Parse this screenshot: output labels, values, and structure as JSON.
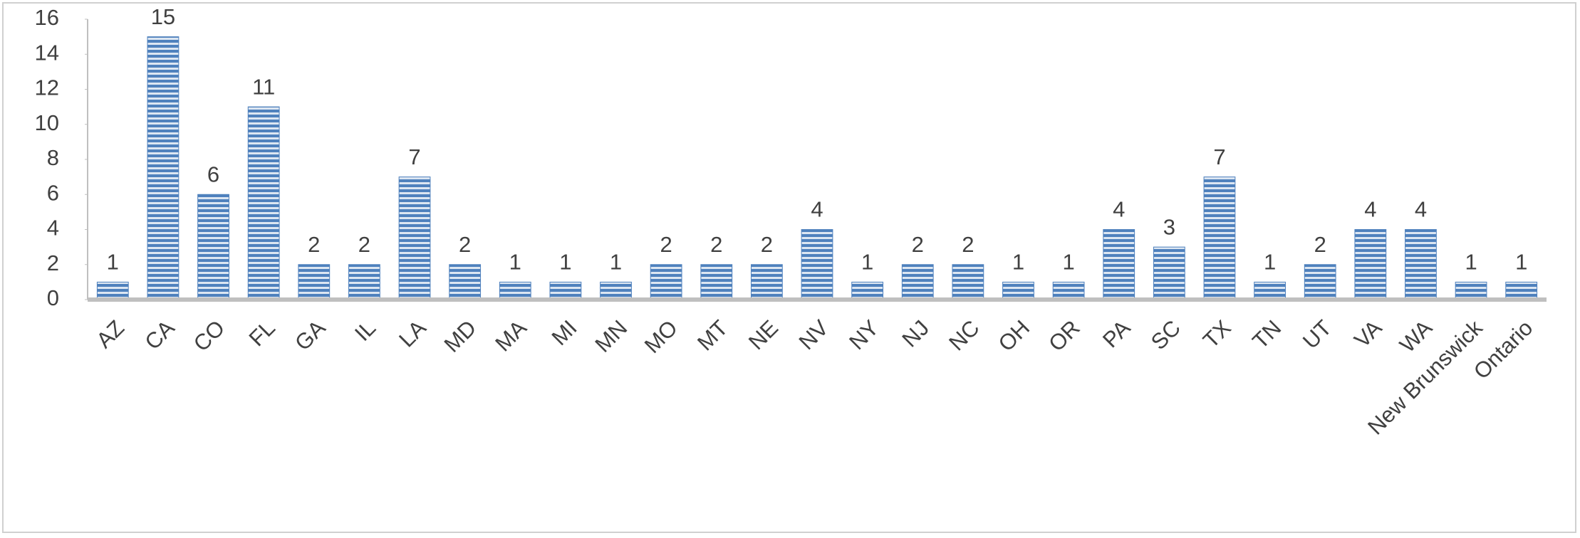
{
  "chart_data": {
    "type": "bar",
    "categories": [
      "AZ",
      "CA",
      "CO",
      "FL",
      "GA",
      "IL",
      "LA",
      "MD",
      "MA",
      "MI",
      "MN",
      "MO",
      "MT",
      "NE",
      "NV",
      "NY",
      "NJ",
      "NC",
      "OH",
      "OR",
      "PA",
      "SC",
      "TX",
      "TN",
      "UT",
      "VA",
      "WA",
      "New Brunswick",
      "Ontario"
    ],
    "values": [
      1,
      15,
      6,
      11,
      2,
      2,
      7,
      2,
      1,
      1,
      1,
      2,
      2,
      2,
      4,
      1,
      2,
      2,
      1,
      1,
      4,
      3,
      7,
      1,
      2,
      4,
      4,
      1,
      1
    ],
    "color": "#4f81bd",
    "ylim": [
      0,
      16
    ],
    "yticks": [
      0,
      2,
      4,
      6,
      8,
      10,
      12,
      14,
      16
    ],
    "grid": false
  }
}
